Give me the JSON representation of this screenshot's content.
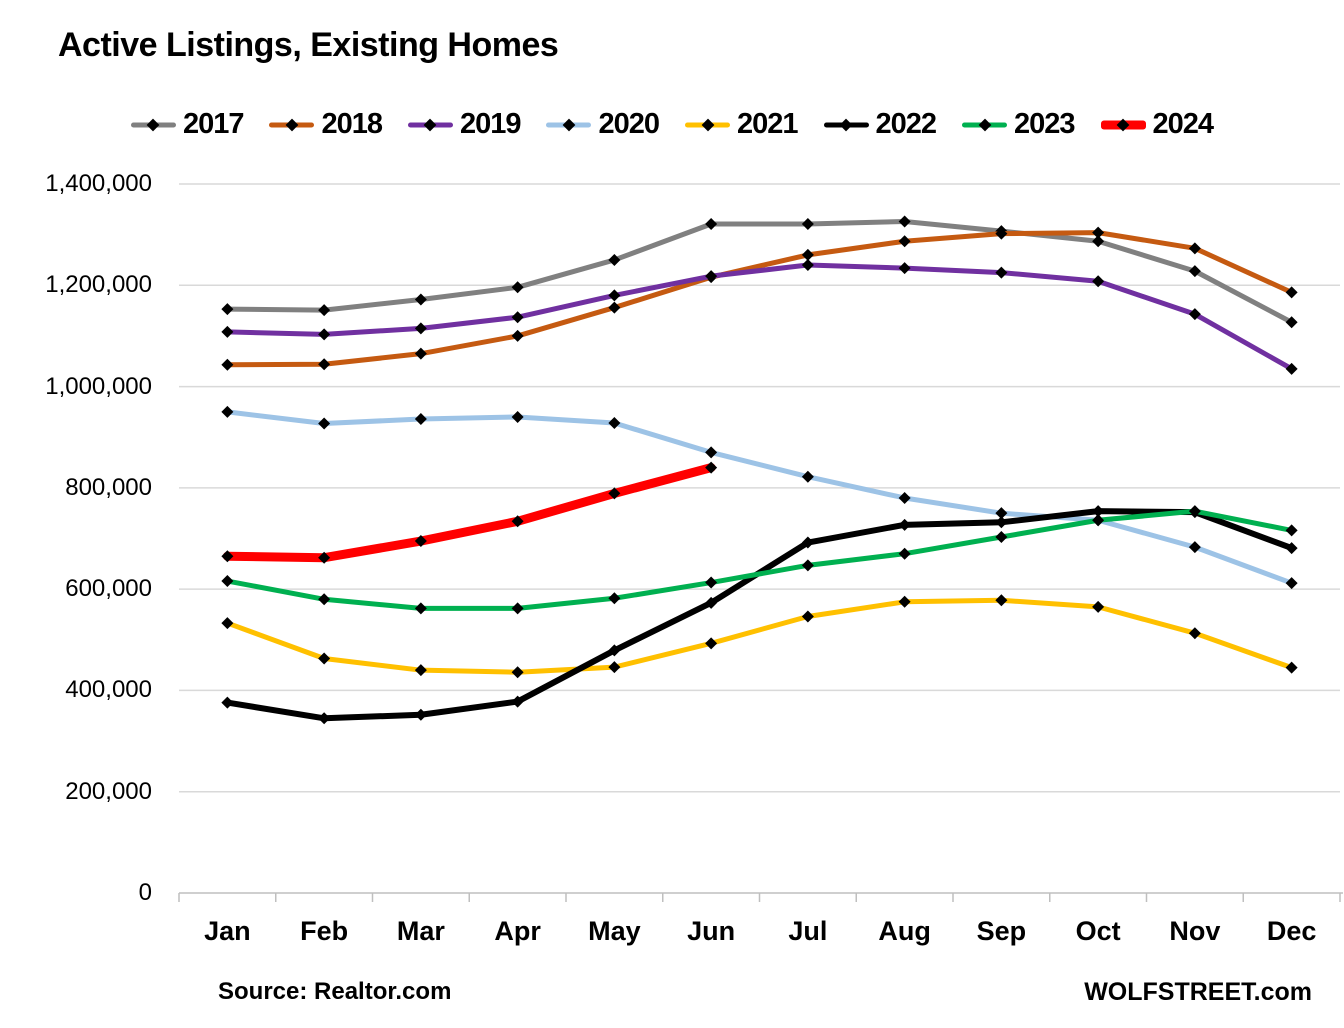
{
  "title": "Active Listings, Existing Homes",
  "footer": {
    "source": "Source: Realtor.com",
    "brand": "WOLFSTREET.com"
  },
  "colors": {
    "gridline": "#D9D9D9",
    "axis_line": "#BFBFBF",
    "marker": "#000000",
    "text": "#000000"
  },
  "chart_data": {
    "type": "line",
    "title": "Active Listings, Existing Homes",
    "categories": [
      "Jan",
      "Feb",
      "Mar",
      "Apr",
      "May",
      "Jun",
      "Jul",
      "Aug",
      "Sep",
      "Oct",
      "Nov",
      "Dec"
    ],
    "xlabel": "",
    "ylabel": "",
    "ylim": [
      0,
      1400000
    ],
    "y_tick_step": 200000,
    "y_tick_labels": [
      "0",
      "200,000",
      "400,000",
      "600,000",
      "800,000",
      "1,000,000",
      "1,200,000",
      "1,400,000"
    ],
    "grid": "horizontal",
    "legend_position": "top",
    "marker": {
      "shape": "diamond",
      "color": "#000000"
    },
    "series": [
      {
        "name": "2017",
        "color": "#808080",
        "line_width": 5,
        "values": [
          1153000,
          1151000,
          1172000,
          1196000,
          1250000,
          1321000,
          1321000,
          1326000,
          1307000,
          1287000,
          1228000,
          1127000
        ]
      },
      {
        "name": "2018",
        "color": "#C55A11",
        "line_width": 5,
        "values": [
          1043000,
          1044000,
          1065000,
          1100000,
          1156000,
          1216000,
          1260000,
          1287000,
          1302000,
          1304000,
          1273000,
          1186000
        ]
      },
      {
        "name": "2019",
        "color": "#7030A0",
        "line_width": 5,
        "values": [
          1108000,
          1103000,
          1115000,
          1137000,
          1180000,
          1218000,
          1240000,
          1234000,
          1225000,
          1208000,
          1143000,
          1035000
        ]
      },
      {
        "name": "2020",
        "color": "#9DC3E6",
        "line_width": 5,
        "values": [
          950000,
          927000,
          936000,
          940000,
          928000,
          870000,
          822000,
          780000,
          750000,
          736000,
          683000,
          612000
        ]
      },
      {
        "name": "2021",
        "color": "#FFC000",
        "line_width": 5,
        "values": [
          533000,
          463000,
          440000,
          436000,
          446000,
          493000,
          546000,
          575000,
          578000,
          565000,
          513000,
          445000
        ]
      },
      {
        "name": "2022",
        "color": "#000000",
        "line_width": 6,
        "values": [
          376000,
          345000,
          352000,
          378000,
          479000,
          573000,
          692000,
          727000,
          732000,
          754000,
          752000,
          681000
        ]
      },
      {
        "name": "2023",
        "color": "#00B050",
        "line_width": 5,
        "values": [
          616000,
          580000,
          562000,
          562000,
          582000,
          613000,
          647000,
          670000,
          703000,
          736000,
          754000,
          716000
        ]
      },
      {
        "name": "2024",
        "color": "#FF0000",
        "line_width": 9,
        "values": [
          665000,
          662000,
          695000,
          734000,
          789000,
          840000
        ]
      }
    ]
  }
}
